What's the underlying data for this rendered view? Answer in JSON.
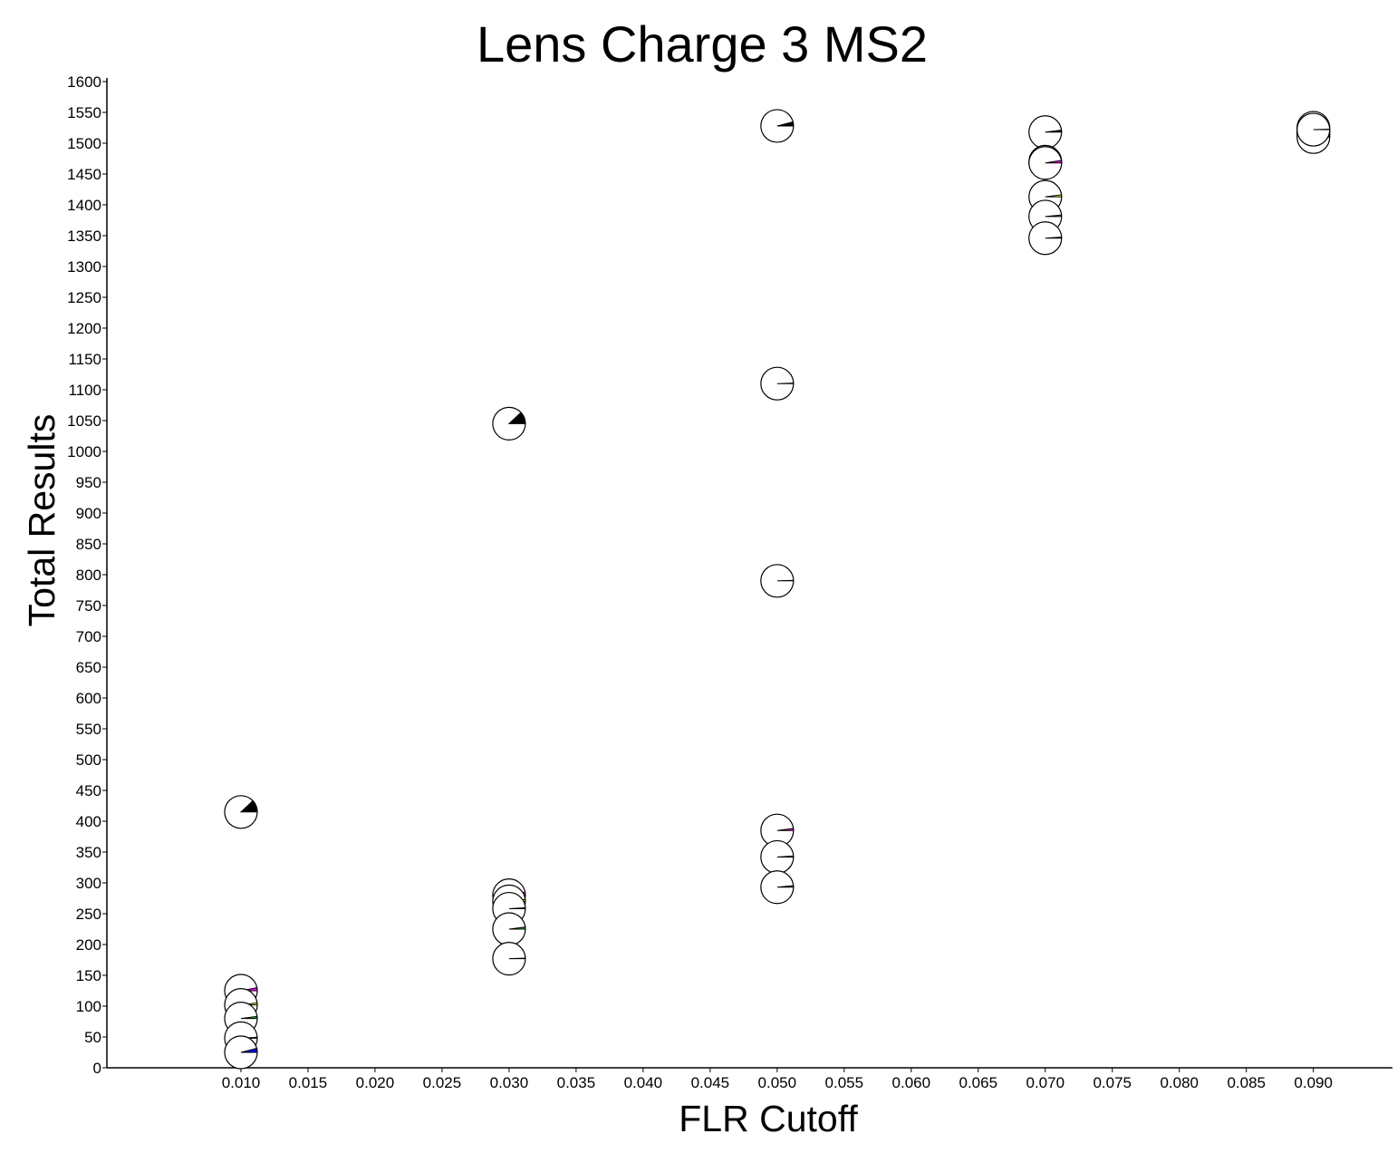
{
  "chart_data": {
    "type": "scatter",
    "marker": "pie-glyph",
    "title": "Lens Charge 3 MS2",
    "xlabel": "FLR Cutoff",
    "ylabel": "Total Results",
    "xlim": [
      0.0,
      0.0959
    ],
    "ylim": [
      0,
      1600
    ],
    "x_ticks": [
      "0.010",
      "0.015",
      "0.020",
      "0.025",
      "0.030",
      "0.035",
      "0.040",
      "0.045",
      "0.050",
      "0.055",
      "0.060",
      "0.065",
      "0.070",
      "0.075",
      "0.080",
      "0.085",
      "0.090"
    ],
    "y_ticks": [
      "0",
      "50",
      "100",
      "150",
      "200",
      "250",
      "300",
      "350",
      "400",
      "450",
      "500",
      "550",
      "600",
      "650",
      "700",
      "750",
      "800",
      "850",
      "900",
      "950",
      "1000",
      "1050",
      "1100",
      "1150",
      "1200",
      "1250",
      "1300",
      "1350",
      "1400",
      "1450",
      "1500",
      "1550",
      "1600"
    ],
    "grid": false,
    "legend": "none",
    "points": [
      {
        "x": 0.01,
        "y": 415,
        "wedge_fraction": 0.12,
        "color": "#000000"
      },
      {
        "x": 0.01,
        "y": 125,
        "wedge_fraction": 0.03,
        "color": "#ff00ff"
      },
      {
        "x": 0.01,
        "y": 102,
        "wedge_fraction": 0.02,
        "color": "#ffff00"
      },
      {
        "x": 0.01,
        "y": 80,
        "wedge_fraction": 0.02,
        "color": "#00cc00"
      },
      {
        "x": 0.01,
        "y": 48,
        "wedge_fraction": 0.01,
        "color": "#00cccc"
      },
      {
        "x": 0.01,
        "y": 25,
        "wedge_fraction": 0.04,
        "color": "#0000ff"
      },
      {
        "x": 0.03,
        "y": 1045,
        "wedge_fraction": 0.12,
        "color": "#000000"
      },
      {
        "x": 0.03,
        "y": 280,
        "wedge_fraction": 0.03,
        "color": "#ff00ff"
      },
      {
        "x": 0.03,
        "y": 270,
        "wedge_fraction": 0.02,
        "color": "#ffff00"
      },
      {
        "x": 0.03,
        "y": 258,
        "wedge_fraction": 0.01,
        "color": "#ff0000"
      },
      {
        "x": 0.03,
        "y": 225,
        "wedge_fraction": 0.02,
        "color": "#00cc00"
      },
      {
        "x": 0.03,
        "y": 177,
        "wedge_fraction": 0.005,
        "color": "#000000"
      },
      {
        "x": 0.05,
        "y": 1528,
        "wedge_fraction": 0.04,
        "color": "#000000"
      },
      {
        "x": 0.05,
        "y": 1110,
        "wedge_fraction": 0.005,
        "color": "#ff0000"
      },
      {
        "x": 0.05,
        "y": 790,
        "wedge_fraction": 0.005,
        "color": "#000000"
      },
      {
        "x": 0.05,
        "y": 385,
        "wedge_fraction": 0.02,
        "color": "#ff00ff"
      },
      {
        "x": 0.05,
        "y": 342,
        "wedge_fraction": 0.01,
        "color": "#ffff00"
      },
      {
        "x": 0.05,
        "y": 293,
        "wedge_fraction": 0.015,
        "color": "#00cc00"
      },
      {
        "x": 0.07,
        "y": 1518,
        "wedge_fraction": 0.02,
        "color": "#000000"
      },
      {
        "x": 0.07,
        "y": 1470,
        "wedge_fraction": 0.01,
        "color": "#ff0000"
      },
      {
        "x": 0.07,
        "y": 1468,
        "wedge_fraction": 0.025,
        "color": "#ff00ff"
      },
      {
        "x": 0.07,
        "y": 1413,
        "wedge_fraction": 0.02,
        "color": "#ffff00"
      },
      {
        "x": 0.07,
        "y": 1381,
        "wedge_fraction": 0.015,
        "color": "#00cc00"
      },
      {
        "x": 0.07,
        "y": 1346,
        "wedge_fraction": 0.01,
        "color": "#0000ff"
      },
      {
        "x": 0.09,
        "y": 1525,
        "wedge_fraction": 0.02,
        "color": "#ff00ff"
      },
      {
        "x": 0.09,
        "y": 1521,
        "wedge_fraction": 0.01,
        "color": "#ff0000"
      },
      {
        "x": 0.09,
        "y": 1518,
        "wedge_fraction": 0.01,
        "color": "#ffff00"
      },
      {
        "x": 0.09,
        "y": 1514,
        "wedge_fraction": 0.015,
        "color": "#00cc00"
      },
      {
        "x": 0.09,
        "y": 1510,
        "wedge_fraction": 0.01,
        "color": "#0000ff"
      },
      {
        "x": 0.09,
        "y": 1522,
        "wedge_fraction": 0.005,
        "color": "#000000"
      }
    ]
  }
}
